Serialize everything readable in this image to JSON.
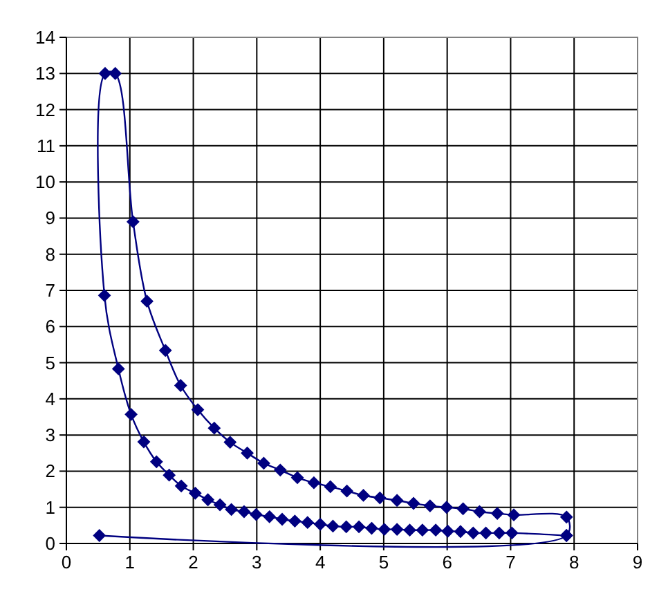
{
  "chart_data": {
    "type": "line",
    "xlim": [
      0,
      9
    ],
    "ylim": [
      0,
      14
    ],
    "xticks": [
      0,
      1,
      2,
      3,
      4,
      5,
      6,
      7,
      8,
      9
    ],
    "yticks": [
      0,
      1,
      2,
      3,
      4,
      5,
      6,
      7,
      8,
      9,
      10,
      11,
      12,
      13,
      14
    ],
    "grid": true,
    "marker": "diamond",
    "line_style": "solid",
    "series": [
      {
        "color": "#000080",
        "x": [
          0.52,
          7.88,
          7.88,
          7.05,
          6.79,
          6.51,
          6.25,
          5.99,
          5.73,
          5.47,
          5.21,
          4.94,
          4.68,
          4.42,
          4.16,
          3.9,
          3.64,
          3.37,
          3.11,
          2.85,
          2.58,
          2.33,
          2.07,
          1.8,
          1.56,
          1.27,
          1.05,
          0.77,
          0.61,
          0.6,
          0.82,
          1.02,
          1.22,
          1.42,
          1.62,
          1.81,
          2.03,
          2.23,
          2.42,
          2.6,
          2.8,
          2.99,
          3.2,
          3.4,
          3.6,
          3.8,
          4.0,
          4.2,
          4.41,
          4.61,
          4.81,
          5.01,
          5.21,
          5.41,
          5.61,
          5.82,
          6.01,
          6.21,
          6.41,
          6.61,
          6.82,
          7.02,
          7.88
        ],
        "values": [
          0.22,
          0.22,
          0.73,
          0.79,
          0.83,
          0.88,
          0.96,
          1.0,
          1.04,
          1.11,
          1.19,
          1.26,
          1.33,
          1.45,
          1.57,
          1.68,
          1.82,
          2.03,
          2.22,
          2.5,
          2.8,
          3.19,
          3.7,
          4.37,
          5.34,
          6.7,
          8.9,
          13,
          13,
          6.86,
          4.83,
          3.57,
          2.81,
          2.26,
          1.89,
          1.59,
          1.39,
          1.21,
          1.07,
          0.94,
          0.88,
          0.8,
          0.74,
          0.67,
          0.62,
          0.58,
          0.53,
          0.48,
          0.46,
          0.46,
          0.42,
          0.39,
          0.39,
          0.37,
          0.37,
          0.37,
          0.34,
          0.33,
          0.29,
          0.29,
          0.29,
          0.29,
          0.22
        ]
      }
    ]
  }
}
